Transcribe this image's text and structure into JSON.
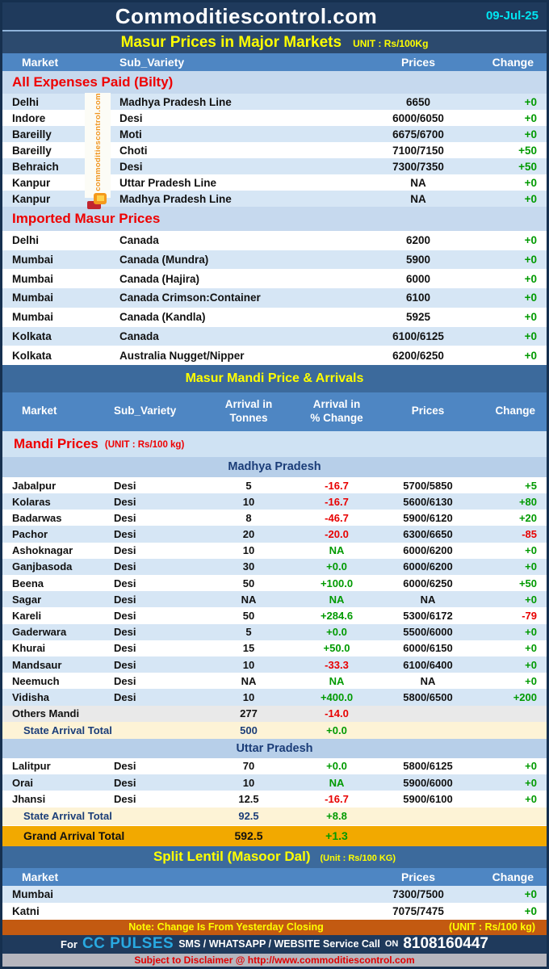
{
  "header": {
    "title": "Commoditiescontrol.com",
    "date": "09-Jul-25"
  },
  "colors": {
    "positive_green": "#009a00",
    "negative_red": "#e80000",
    "date_cyan": "#00e5f2",
    "cc_pulses_cyan": "#29a9e1",
    "grand_total_gold": "#f2a900",
    "note_orange": "#c35a11",
    "header_navy": "#1f3a5c",
    "section_steel_blue": "#3c6a9c",
    "column_header_blue": "#4e86c3",
    "watermark_orange": "#f0941e"
  },
  "watermark": {
    "text": "commoditiescontrol.com"
  },
  "major": {
    "title": "Masur Prices in Major Markets",
    "unit": "UNIT : Rs/100Kg",
    "columns": {
      "market": "Market",
      "sub": "Sub_Variety",
      "prices": "Prices",
      "change": "Change"
    },
    "sections": [
      {
        "name": "All Expenses Paid (Bilty)",
        "stripe_offset": 0,
        "rows": [
          {
            "market": "Delhi",
            "sub": "Madhya Pradesh Line",
            "prices": "6650",
            "change": "+0"
          },
          {
            "market": "Indore",
            "sub": "Desi",
            "prices": "6000/6050",
            "change": "+0"
          },
          {
            "market": "Bareilly",
            "sub": "Moti",
            "prices": "6675/6700",
            "change": "+0"
          },
          {
            "market": "Bareilly",
            "sub": "Choti",
            "prices": "7100/7150",
            "change": "+50"
          },
          {
            "market": "Behraich",
            "sub": "Desi",
            "prices": "7300/7350",
            "change": "+50"
          },
          {
            "market": "Kanpur",
            "sub": "Uttar Pradesh Line",
            "prices": "NA",
            "change": "+0"
          },
          {
            "market": "Kanpur",
            "sub": "Madhya Pradesh Line",
            "prices": "NA",
            "change": "+0"
          }
        ]
      },
      {
        "name": "Imported Masur Prices",
        "stripe_offset": 1,
        "rows": [
          {
            "market": "Delhi",
            "sub": "Canada",
            "prices": "6200",
            "change": "+0"
          },
          {
            "market": "Mumbai",
            "sub": "Canada (Mundra)",
            "prices": "5900",
            "change": "+0"
          },
          {
            "market": "Mumbai",
            "sub": "Canada (Hajira)",
            "prices": "6000",
            "change": "+0"
          },
          {
            "market": "Mumbai",
            "sub": "Canada Crimson:Container",
            "prices": "6100",
            "change": "+0"
          },
          {
            "market": "Mumbai",
            "sub": "Canada (Kandla)",
            "prices": "5925",
            "change": "+0"
          },
          {
            "market": "Kolkata",
            "sub": "Canada",
            "prices": "6100/6125",
            "change": "+0"
          },
          {
            "market": "Kolkata",
            "sub": "Australia Nugget/Nipper",
            "prices": "6200/6250",
            "change": "+0"
          }
        ]
      }
    ]
  },
  "mandi": {
    "title": "Masur Mandi Price & Arrivals",
    "label": "Mandi Prices",
    "unit": "(UNIT : Rs/100 kg)",
    "columns": {
      "market": "Market",
      "sub": "Sub_Variety",
      "tonnes1": "Arrival in",
      "tonnes2": "Tonnes",
      "pct1": "Arrival  in",
      "pct2": "% Change",
      "prices": "Prices",
      "change": "Change"
    },
    "states": [
      {
        "name": "Madhya Pradesh",
        "rows": [
          {
            "market": "Jabalpur",
            "sub": "Desi",
            "tonnes": "5",
            "pct": "-16.7",
            "prices": "5700/5850",
            "change": "+5"
          },
          {
            "market": "Kolaras",
            "sub": "Desi",
            "tonnes": "10",
            "pct": "-16.7",
            "prices": "5600/6130",
            "change": "+80"
          },
          {
            "market": "Badarwas",
            "sub": "Desi",
            "tonnes": "8",
            "pct": "-46.7",
            "prices": "5900/6120",
            "change": "+20"
          },
          {
            "market": "Pachor",
            "sub": "Desi",
            "tonnes": "20",
            "pct": "-20.0",
            "prices": "6300/6650",
            "change": "-85"
          },
          {
            "market": "Ashoknagar",
            "sub": "Desi",
            "tonnes": "10",
            "pct": "NA",
            "prices": "6000/6200",
            "change": "+0"
          },
          {
            "market": "Ganjbasoda",
            "sub": "Desi",
            "tonnes": "30",
            "pct": "+0.0",
            "prices": "6000/6200",
            "change": "+0"
          },
          {
            "market": "Beena",
            "sub": "Desi",
            "tonnes": "50",
            "pct": "+100.0",
            "prices": "6000/6250",
            "change": "+50"
          },
          {
            "market": "Sagar",
            "sub": "Desi",
            "tonnes": "NA",
            "pct": "NA",
            "prices": "NA",
            "change": "+0"
          },
          {
            "market": "Kareli",
            "sub": "Desi",
            "tonnes": "50",
            "pct": "+284.6",
            "prices": "5300/6172",
            "change": "-79"
          },
          {
            "market": "Gaderwara",
            "sub": "Desi",
            "tonnes": "5",
            "pct": "+0.0",
            "prices": "5500/6000",
            "change": "+0"
          },
          {
            "market": "Khurai",
            "sub": "Desi",
            "tonnes": "15",
            "pct": "+50.0",
            "prices": "6000/6150",
            "change": "+0"
          },
          {
            "market": "Mandsaur",
            "sub": "Desi",
            "tonnes": "10",
            "pct": "-33.3",
            "prices": "6100/6400",
            "change": "+0"
          },
          {
            "market": "Neemuch",
            "sub": "Desi",
            "tonnes": "NA",
            "pct": "NA",
            "prices": "NA",
            "change": "+0"
          },
          {
            "market": "Vidisha",
            "sub": "Desi",
            "tonnes": "10",
            "pct": "+400.0",
            "prices": "5800/6500",
            "change": "+200"
          }
        ],
        "others": {
          "label": "Others Mandi",
          "tonnes": "277",
          "pct": "-14.0"
        },
        "total": {
          "label": "State Arrival Total",
          "tonnes": "500",
          "pct": "+0.0"
        }
      },
      {
        "name": "Uttar Pradesh",
        "rows": [
          {
            "market": "Lalitpur",
            "sub": "Desi",
            "tonnes": "70",
            "pct": "+0.0",
            "prices": "5800/6125",
            "change": "+0"
          },
          {
            "market": "Orai",
            "sub": "Desi",
            "tonnes": "10",
            "pct": "NA",
            "prices": "5900/6000",
            "change": "+0"
          },
          {
            "market": "Jhansi",
            "sub": "Desi",
            "tonnes": "12.5",
            "pct": "-16.7",
            "prices": "5900/6100",
            "change": "+0"
          }
        ],
        "total": {
          "label": "State Arrival Total",
          "tonnes": "92.5",
          "pct": "+8.8"
        }
      }
    ],
    "grand": {
      "label": "Grand Arrival Total",
      "tonnes": "592.5",
      "pct": "+1.3"
    }
  },
  "split": {
    "title": "Split Lentil (Masoor Dal)",
    "unit": "(Unit : Rs/100 KG)",
    "columns": {
      "market": "Market",
      "prices": "Prices",
      "change": "Change"
    },
    "stripe_offset": 0,
    "rows": [
      {
        "market": "Mumbai",
        "prices": "7300/7500",
        "change": "+0"
      },
      {
        "market": "Katni",
        "prices": "7075/7475",
        "change": "+0"
      }
    ]
  },
  "note": {
    "text": "Note: Change Is From Yesterday Closing",
    "unit": "(UNIT : Rs/100 kg)"
  },
  "contact": {
    "for": "For",
    "brand": "CC PULSES",
    "services": "SMS / WHATSAPP / WEBSITE Service Call",
    "on": "ON",
    "phone": "8108160447"
  },
  "disclaimer": "Subject to Disclaimer @  http://www.commoditiescontrol.com"
}
